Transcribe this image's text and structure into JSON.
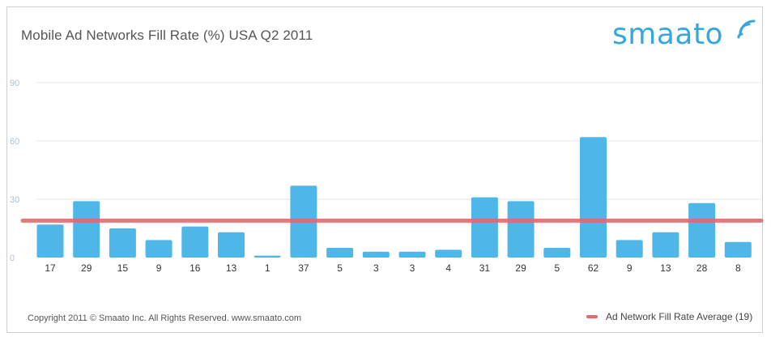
{
  "title": "Mobile Ad Networks Fill Rate (%) USA Q2 2011",
  "logo": {
    "text": "smaato",
    "icon": "wifi-signal-icon",
    "color": "#35a7df"
  },
  "footer": {
    "copyright": "Copyright 2011 © Smaato Inc. All Rights Reserved. www.smaato.com"
  },
  "legend": {
    "label": "Ad Network Fill Rate Average (19)",
    "color": "#e06b6b"
  },
  "chart_data": {
    "type": "bar",
    "title": "Mobile Ad Networks Fill Rate (%) USA Q2 2011",
    "categories": [
      "17",
      "29",
      "15",
      "9",
      "16",
      "13",
      "1",
      "37",
      "5",
      "3",
      "3",
      "4",
      "31",
      "29",
      "5",
      "62",
      "9",
      "13",
      "28",
      "8"
    ],
    "values": [
      17,
      29,
      15,
      9,
      16,
      13,
      1,
      37,
      5,
      3,
      3,
      4,
      31,
      29,
      5,
      62,
      9,
      13,
      28,
      8
    ],
    "ylim": [
      0,
      90
    ],
    "yticks": [
      0,
      30,
      60,
      90
    ],
    "average_line": {
      "name": "Ad Network Fill Rate Average (19)",
      "value": 19,
      "color": "#e06b6b"
    },
    "bar_color": "#4fb7e8",
    "grid": true,
    "legend_position": "bottom-right"
  }
}
